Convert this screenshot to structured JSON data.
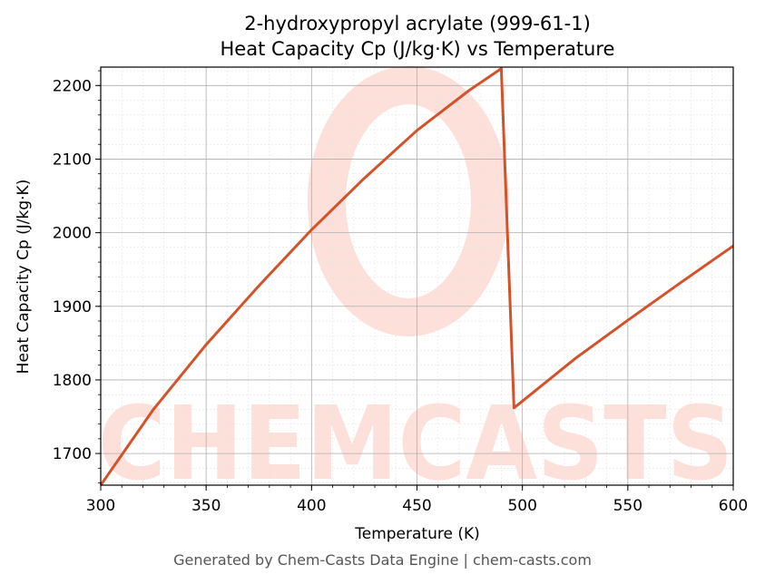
{
  "chart_data": {
    "type": "line",
    "title_line1": "2-hydroxypropyl acrylate (999-61-1)",
    "title_line2": "Heat Capacity Cp (J/kg·K) vs Temperature",
    "xlabel": "Temperature (K)",
    "ylabel": "Heat Capacity Cp (J/kg·K)",
    "xlim": [
      300,
      600
    ],
    "ylim": [
      1657,
      2225
    ],
    "xticks": [
      300,
      350,
      400,
      450,
      500,
      550,
      600
    ],
    "yticks": [
      1700,
      1800,
      1900,
      2000,
      2100,
      2200
    ],
    "grid": "major and minor",
    "series": [
      {
        "color": "#d4522a",
        "x": [
          300,
          325,
          350,
          375,
          400,
          425,
          450,
          475,
          490,
          496,
          525,
          550,
          575,
          600
        ],
        "y": [
          1657,
          1760,
          1848,
          1928,
          2004,
          2074,
          2139,
          2194,
          2223,
          1762,
          1829,
          1881,
          1932,
          1982
        ]
      }
    ]
  },
  "watermark": {
    "text": "CHEMCASTS",
    "color": "#fde0d9"
  },
  "footer": "Generated by Chem-Casts Data Engine | chem-casts.com"
}
